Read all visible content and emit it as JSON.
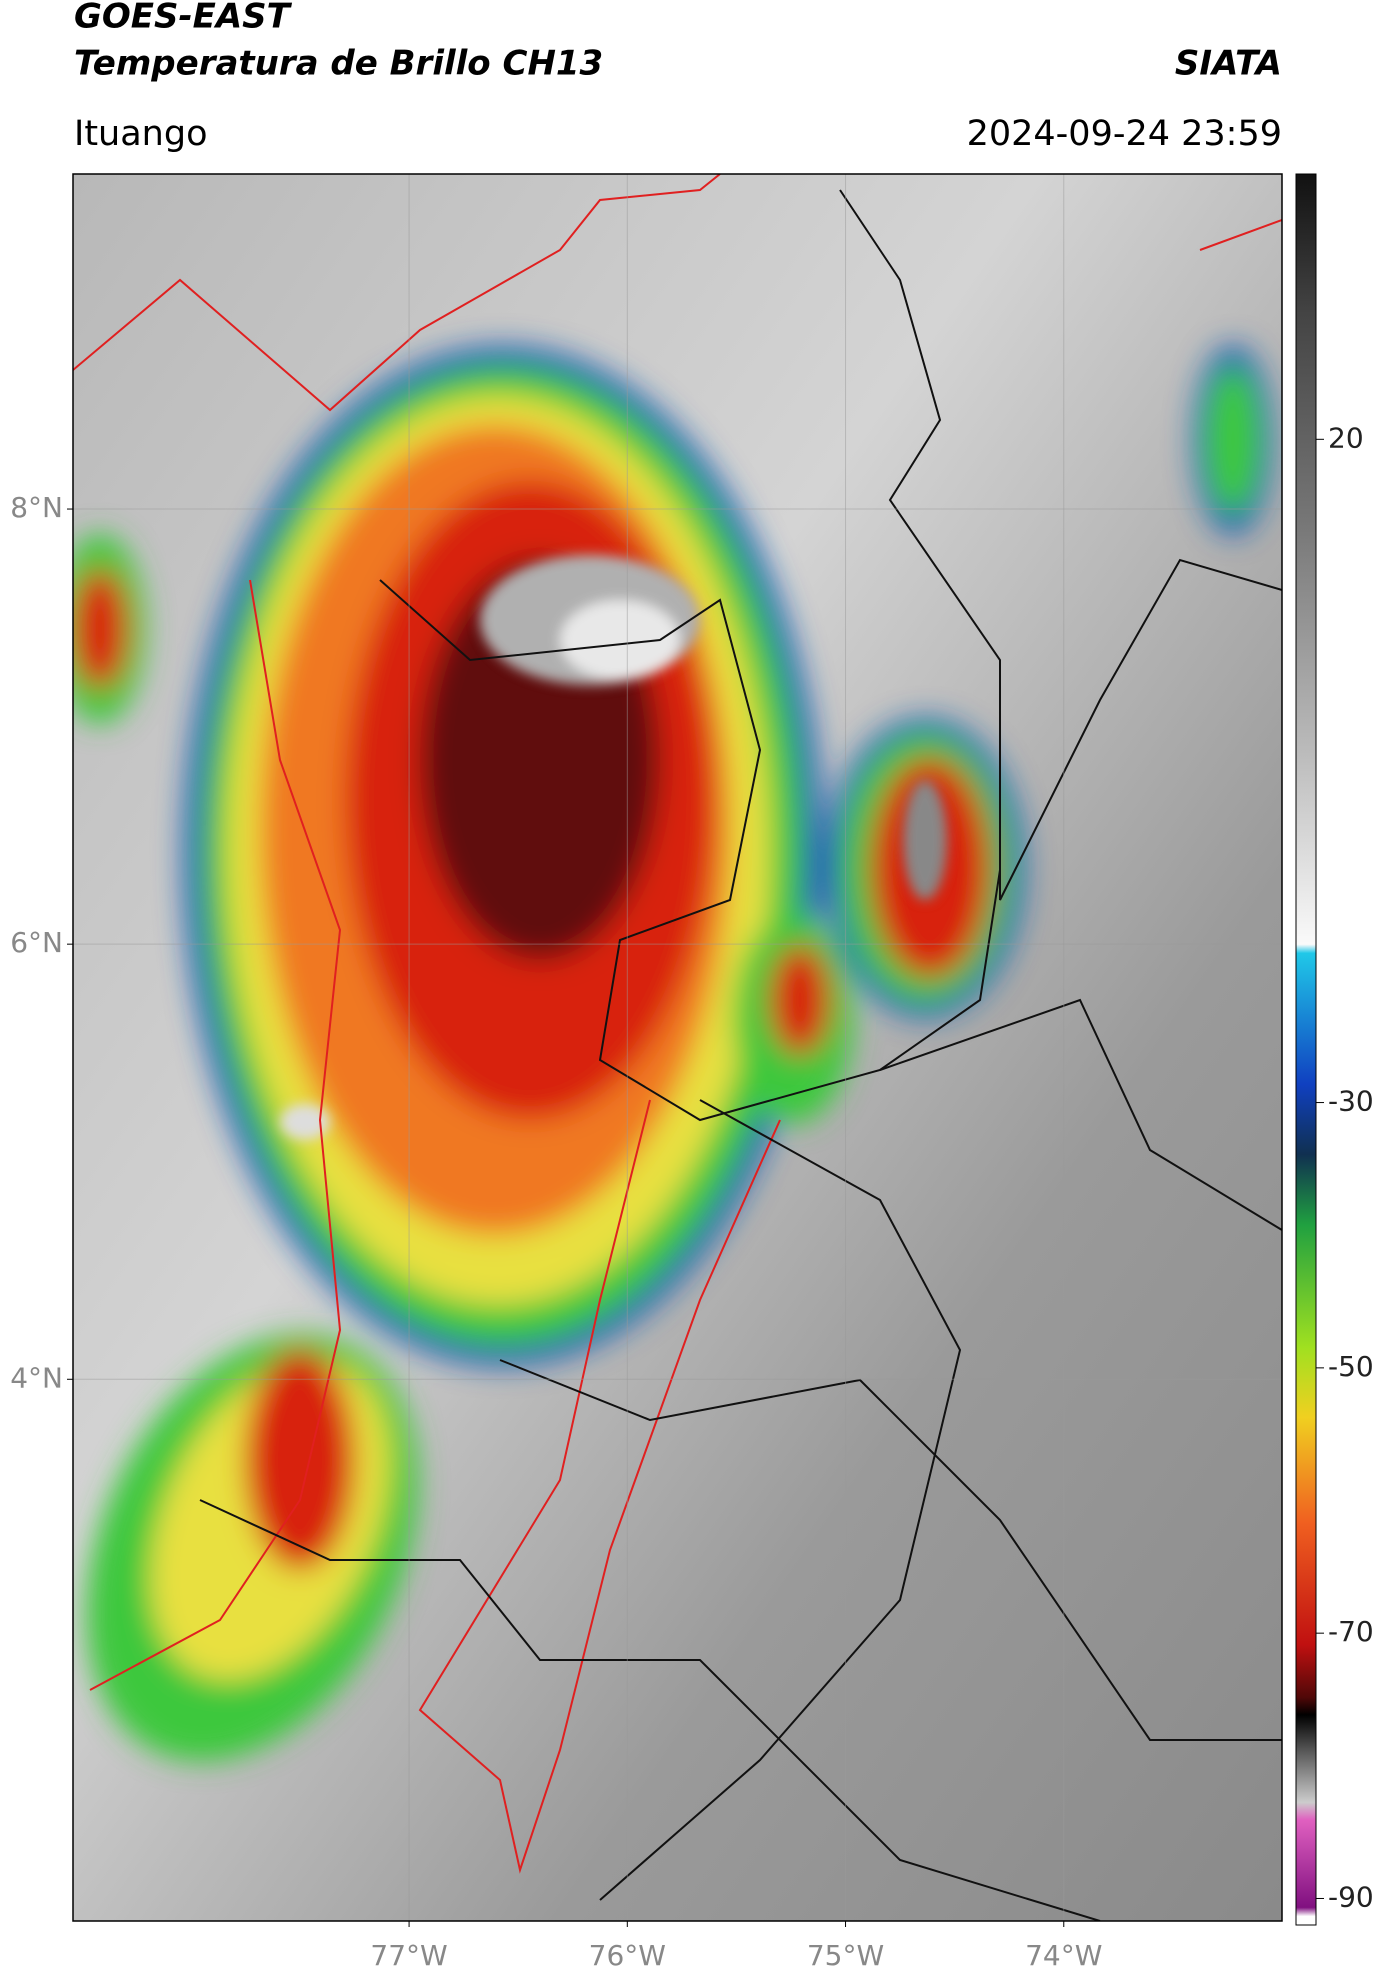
{
  "header": {
    "title": "GOES-EAST",
    "subtitle": "Temperatura de Brillo CH13",
    "source": "SIATA",
    "location": "Ituango",
    "datetime": "2024-09-24 23:59"
  },
  "map": {
    "xlim": [
      -78.54,
      -73.0
    ],
    "ylim": [
      1.51,
      9.54
    ],
    "xticks": [
      {
        "value": -77,
        "label": "77°W"
      },
      {
        "value": -76,
        "label": "76°W"
      },
      {
        "value": -75,
        "label": "75°W"
      },
      {
        "value": -74,
        "label": "74°W"
      }
    ],
    "yticks": [
      {
        "value": 8,
        "label": "8°N"
      },
      {
        "value": 6,
        "label": "6°N"
      },
      {
        "value": 4,
        "label": "4°N"
      }
    ]
  },
  "colorbar": {
    "lim": [
      -92,
      40
    ],
    "ticks": [
      20,
      -30,
      -50,
      -70,
      -90
    ]
  }
}
